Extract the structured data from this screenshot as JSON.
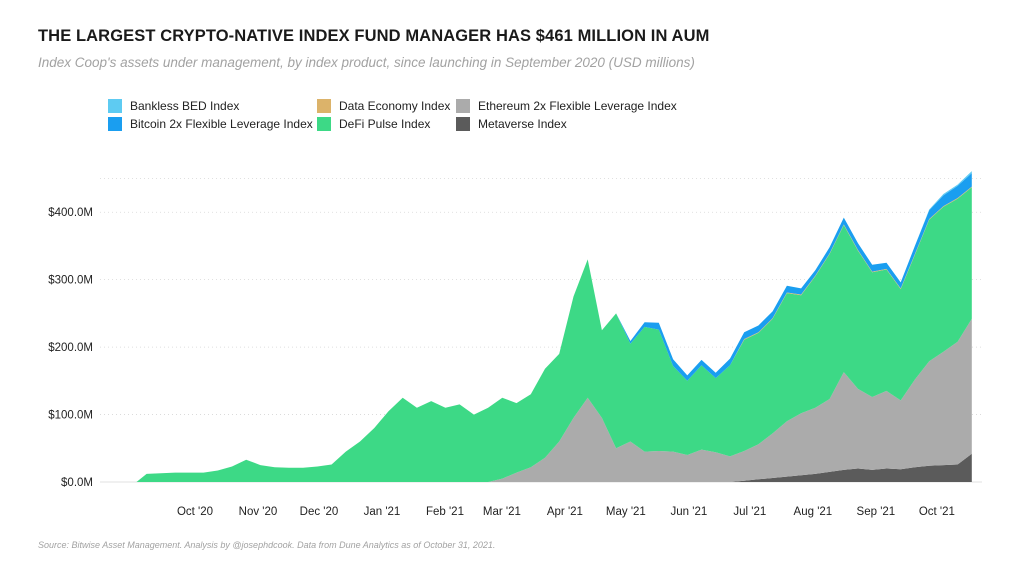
{
  "colors": {
    "bankless_bed": "#5ecbf2",
    "data_economy": "#dcb36a",
    "eth2x": "#ababab",
    "btc2x": "#1a9ef0",
    "dpi": "#3dd986",
    "metaverse": "#5b5b5b"
  },
  "chart_data": {
    "type": "area",
    "title": "THE LARGEST CRYPTO-NATIVE INDEX FUND MANAGER HAS $461 MILLION IN AUM",
    "subtitle": "Index Coop's assets under management, by index product, since launching in September 2020 (USD millions)",
    "source": "Source: Bitwise Asset Management. Analysis by @josephdcook. Data from Dune Analytics as of October 31, 2021.",
    "stacked": true,
    "grid": "horizontal dotted",
    "legend_position": "top-left",
    "ylim": [
      0,
      470
    ],
    "y_ticks": [
      {
        "value": 0,
        "label": "$0.0M"
      },
      {
        "value": 100,
        "label": "$100.0M"
      },
      {
        "value": 200,
        "label": "$200.0M"
      },
      {
        "value": 300,
        "label": "$300.0M"
      },
      {
        "value": 400,
        "label": "$400.0M"
      }
    ],
    "x_ticks": [
      {
        "date": "2020-10-01",
        "label": "Oct '20"
      },
      {
        "date": "2020-11-01",
        "label": "Nov '20"
      },
      {
        "date": "2020-12-01",
        "label": "Dec '20"
      },
      {
        "date": "2021-01-01",
        "label": "Jan '21"
      },
      {
        "date": "2021-02-01",
        "label": "Feb '21"
      },
      {
        "date": "2021-03-01",
        "label": "Mar '21"
      },
      {
        "date": "2021-04-01",
        "label": "Apr '21"
      },
      {
        "date": "2021-05-01",
        "label": "May '21"
      },
      {
        "date": "2021-06-01",
        "label": "Jun '21"
      },
      {
        "date": "2021-07-01",
        "label": "Jul '21"
      },
      {
        "date": "2021-08-01",
        "label": "Aug '21"
      },
      {
        "date": "2021-09-01",
        "label": "Sep '21"
      },
      {
        "date": "2021-10-01",
        "label": "Oct '21"
      }
    ],
    "legend_order": [
      "Bankless BED Index",
      "Bitcoin 2x Flexible Leverage Index",
      "Data Economy Index",
      "DeFi Pulse Index",
      "Ethereum 2x Flexible Leverage Index",
      "Metaverse Index"
    ],
    "x": [
      "2020-09-15",
      "2020-09-20",
      "2020-09-27",
      "2020-10-04",
      "2020-10-11",
      "2020-10-18",
      "2020-10-25",
      "2020-11-01",
      "2020-11-08",
      "2020-11-15",
      "2020-11-22",
      "2020-11-29",
      "2020-12-06",
      "2020-12-13",
      "2020-12-20",
      "2020-12-27",
      "2021-01-03",
      "2021-01-10",
      "2021-01-17",
      "2021-01-24",
      "2021-01-31",
      "2021-02-07",
      "2021-02-14",
      "2021-02-21",
      "2021-02-28",
      "2021-03-07",
      "2021-03-14",
      "2021-03-21",
      "2021-03-28",
      "2021-04-04",
      "2021-04-11",
      "2021-04-18",
      "2021-04-25",
      "2021-05-02",
      "2021-05-09",
      "2021-05-16",
      "2021-05-23",
      "2021-05-30",
      "2021-06-06",
      "2021-06-13",
      "2021-06-20",
      "2021-06-27",
      "2021-07-04",
      "2021-07-11",
      "2021-07-18",
      "2021-07-25",
      "2021-08-01",
      "2021-08-08",
      "2021-08-15",
      "2021-08-22",
      "2021-08-29",
      "2021-09-05",
      "2021-09-12",
      "2021-09-19",
      "2021-09-26",
      "2021-10-03",
      "2021-10-10",
      "2021-10-17",
      "2021-10-24",
      "2021-10-31"
    ],
    "series": [
      {
        "name": "Metaverse Index",
        "colorKey": "metaverse",
        "values": [
          0,
          0,
          0,
          0,
          0,
          0,
          0,
          0,
          0,
          0,
          0,
          0,
          0,
          0,
          0,
          0,
          0,
          0,
          0,
          0,
          0,
          0,
          0,
          0,
          0,
          0,
          0,
          0,
          0,
          0,
          0,
          0,
          0,
          0,
          0,
          0,
          0,
          0,
          0,
          0,
          0,
          0,
          0,
          2,
          4,
          6,
          8,
          10,
          12,
          15,
          18,
          20,
          18,
          20,
          19,
          22,
          24,
          25,
          26,
          42
        ]
      },
      {
        "name": "Ethereum 2x Flexible Leverage Index",
        "colorKey": "eth2x",
        "values": [
          0,
          0,
          0,
          0,
          0,
          0,
          0,
          0,
          0,
          0,
          0,
          0,
          0,
          0,
          0,
          0,
          0,
          0,
          0,
          0,
          0,
          0,
          0,
          0,
          0,
          0,
          5,
          14,
          22,
          36,
          60,
          95,
          125,
          95,
          50,
          60,
          45,
          46,
          45,
          40,
          48,
          44,
          38,
          44,
          52,
          66,
          82,
          92,
          98,
          108,
          145,
          118,
          108,
          115,
          102,
          130,
          155,
          168,
          182,
          200
        ]
      },
      {
        "name": "DeFi Pulse Index",
        "colorKey": "dpi",
        "values": [
          0,
          12,
          13,
          14,
          14,
          14,
          17,
          23,
          33,
          25,
          22,
          21,
          21,
          23,
          26,
          45,
          60,
          80,
          105,
          125,
          110,
          120,
          110,
          115,
          100,
          110,
          120,
          103,
          108,
          132,
          130,
          180,
          205,
          130,
          200,
          145,
          185,
          180,
          127,
          110,
          125,
          110,
          135,
          165,
          165,
          170,
          190,
          175,
          195,
          215,
          218,
          205,
          185,
          180,
          165,
          185,
          210,
          215,
          212,
          195
        ]
      },
      {
        "name": "Data Economy Index",
        "colorKey": "data_economy",
        "values": [
          0,
          0,
          0,
          0,
          0,
          0,
          0,
          0,
          0,
          0,
          0,
          0,
          0,
          0,
          0,
          0,
          0,
          0,
          0,
          0,
          0,
          0,
          0,
          0,
          0,
          0,
          0,
          0,
          0,
          0,
          0,
          0,
          0,
          0,
          0,
          0,
          0,
          0,
          0,
          0,
          0,
          0,
          0,
          1,
          1,
          1,
          1,
          1,
          1,
          1,
          1,
          1,
          1,
          1,
          1,
          1,
          1,
          1,
          1,
          1
        ]
      },
      {
        "name": "Bitcoin 2x Flexible Leverage Index",
        "colorKey": "btc2x",
        "values": [
          0,
          0,
          0,
          0,
          0,
          0,
          0,
          0,
          0,
          0,
          0,
          0,
          0,
          0,
          0,
          0,
          0,
          0,
          0,
          0,
          0,
          0,
          0,
          0,
          0,
          0,
          0,
          0,
          0,
          0,
          0,
          0,
          0,
          0,
          0,
          4,
          7,
          10,
          10,
          8,
          8,
          8,
          10,
          10,
          10,
          10,
          10,
          9,
          8,
          9,
          10,
          10,
          10,
          9,
          9,
          12,
          13,
          16,
          18,
          20
        ]
      },
      {
        "name": "Bankless BED Index",
        "colorKey": "bankless_bed",
        "values": [
          0,
          0,
          0,
          0,
          0,
          0,
          0,
          0,
          0,
          0,
          0,
          0,
          0,
          0,
          0,
          0,
          0,
          0,
          0,
          0,
          0,
          0,
          0,
          0,
          0,
          0,
          0,
          0,
          0,
          0,
          0,
          0,
          0,
          0,
          0,
          0,
          0,
          0,
          0,
          0,
          0,
          0,
          0,
          0,
          0,
          0,
          0,
          0,
          0,
          0,
          0,
          0,
          0,
          0,
          0,
          0,
          1,
          2,
          2,
          3
        ]
      }
    ]
  }
}
